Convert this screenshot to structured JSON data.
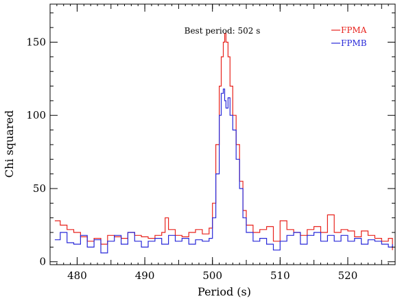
{
  "chart_data": {
    "type": "line",
    "title": "",
    "xlabel": "Period (s)",
    "ylabel": "Chi squared",
    "xlim": [
      476,
      527
    ],
    "ylim": [
      -2,
      176
    ],
    "xticks": [
      480,
      490,
      500,
      510,
      520
    ],
    "yticks": [
      0,
      50,
      100,
      150
    ],
    "xtick_labels": [
      "480",
      "490",
      "500",
      "510",
      "520"
    ],
    "ytick_labels": [
      "0",
      "50",
      "100",
      "150"
    ],
    "grid": false,
    "legend_position": "top-right",
    "annotation": {
      "text": "Best period: 502 s",
      "x": 502,
      "y": 160
    },
    "series": [
      {
        "name": "FPMA",
        "color": "#e8221c",
        "x": [
          476.7,
          477.5,
          478.5,
          479.5,
          480.5,
          481.5,
          482.5,
          483.5,
          484.5,
          485.5,
          486.5,
          487.5,
          488.5,
          489.5,
          490.5,
          491.5,
          492.5,
          493,
          493.5,
          494.5,
          495.5,
          496.5,
          497.5,
          498.5,
          499.5,
          500,
          500.5,
          501,
          501.3,
          501.6,
          501.8,
          502,
          502.3,
          502.6,
          503,
          503.5,
          504,
          504.5,
          505,
          506,
          507,
          508,
          509,
          510,
          511,
          512,
          513,
          514,
          515,
          516,
          517,
          518,
          519,
          520,
          521,
          522,
          523,
          524,
          525,
          526,
          526.6
        ],
        "values": [
          28,
          25,
          22,
          20,
          17,
          14,
          16,
          12,
          18,
          17,
          16,
          20,
          18,
          17,
          16,
          18,
          20,
          30,
          22,
          18,
          17,
          20,
          22,
          19,
          23,
          40,
          80,
          120,
          140,
          150,
          156,
          150,
          140,
          120,
          100,
          80,
          55,
          35,
          25,
          20,
          22,
          24,
          14,
          28,
          22,
          20,
          18,
          22,
          24,
          20,
          32,
          20,
          22,
          21,
          17,
          21,
          18,
          16,
          14,
          16,
          8
        ]
      },
      {
        "name": "FPMB",
        "color": "#2727d8",
        "x": [
          476.7,
          477.5,
          478.5,
          479.5,
          480.5,
          481.5,
          482.5,
          483.5,
          484.5,
          485.5,
          486.5,
          487.5,
          488.5,
          489.5,
          490.5,
          491.5,
          492.5,
          493.5,
          494.5,
          495.5,
          496.5,
          497.5,
          498.5,
          499.5,
          500,
          500.5,
          501,
          501.3,
          501.6,
          501.8,
          502,
          502.3,
          502.6,
          503,
          503.5,
          504,
          504.5,
          505,
          506,
          507,
          508,
          509,
          510,
          511,
          512,
          513,
          514,
          515,
          516,
          517,
          518,
          519,
          520,
          521,
          522,
          523,
          524,
          525,
          526,
          526.6
        ],
        "values": [
          15,
          20,
          13,
          12,
          18,
          10,
          15,
          6,
          14,
          18,
          12,
          20,
          14,
          10,
          14,
          16,
          12,
          18,
          14,
          16,
          12,
          15,
          14,
          16,
          30,
          60,
          100,
          115,
          118,
          110,
          105,
          112,
          100,
          90,
          70,
          50,
          30,
          20,
          14,
          16,
          12,
          8,
          14,
          18,
          20,
          12,
          18,
          20,
          14,
          18,
          14,
          18,
          14,
          16,
          12,
          15,
          14,
          12,
          10,
          12
        ]
      }
    ]
  }
}
